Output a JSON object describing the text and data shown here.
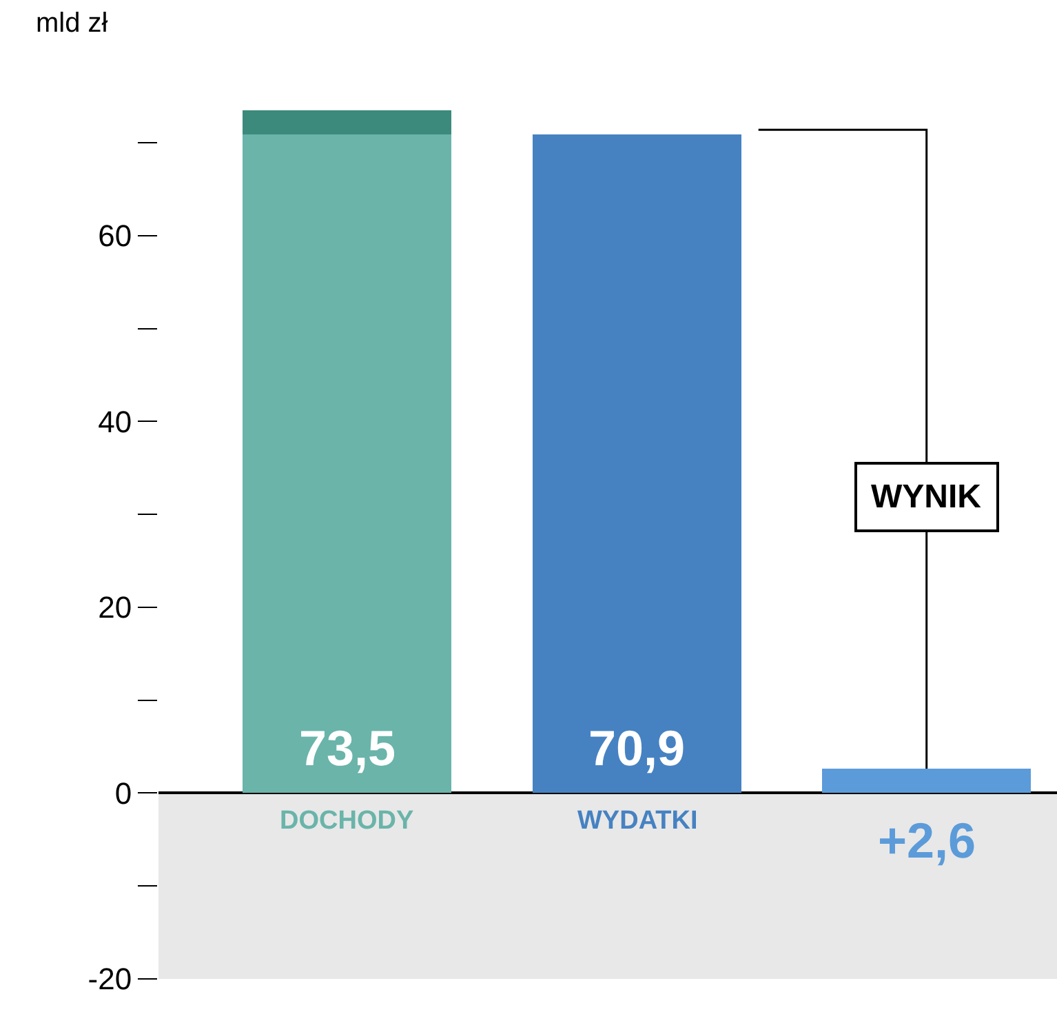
{
  "chart_data": {
    "type": "bar",
    "stacked": true,
    "ylabel": "mld zł",
    "categories": [
      "DOCHODY",
      "WYDATKI",
      null
    ],
    "series": [
      {
        "colors": [
          "#6ab4aa",
          "#4682c2",
          "#5c9bd9"
        ],
        "values": [
          70.9,
          70.9,
          2.6
        ]
      },
      {
        "colors": [
          "#3c8a7b",
          null,
          null
        ],
        "values": [
          2.6,
          null,
          null
        ]
      }
    ],
    "totals": [
      "73,5",
      "70,9",
      "+2,6"
    ],
    "annotations": [
      "WYNIK"
    ],
    "ylim": [
      -20,
      73.5
    ],
    "yticks": [
      -20,
      {
        "value": -10,
        "label": null
      },
      0,
      {
        "value": 10,
        "label": null
      },
      20,
      {
        "value": 30,
        "label": null
      },
      40,
      {
        "value": 50,
        "label": null
      },
      60,
      {
        "value": 70,
        "label": null
      }
    ],
    "bands": [
      {
        "axis": "y",
        "from": -20,
        "to": 0,
        "color": "#e8e8e8"
      }
    ],
    "grid": false
  }
}
